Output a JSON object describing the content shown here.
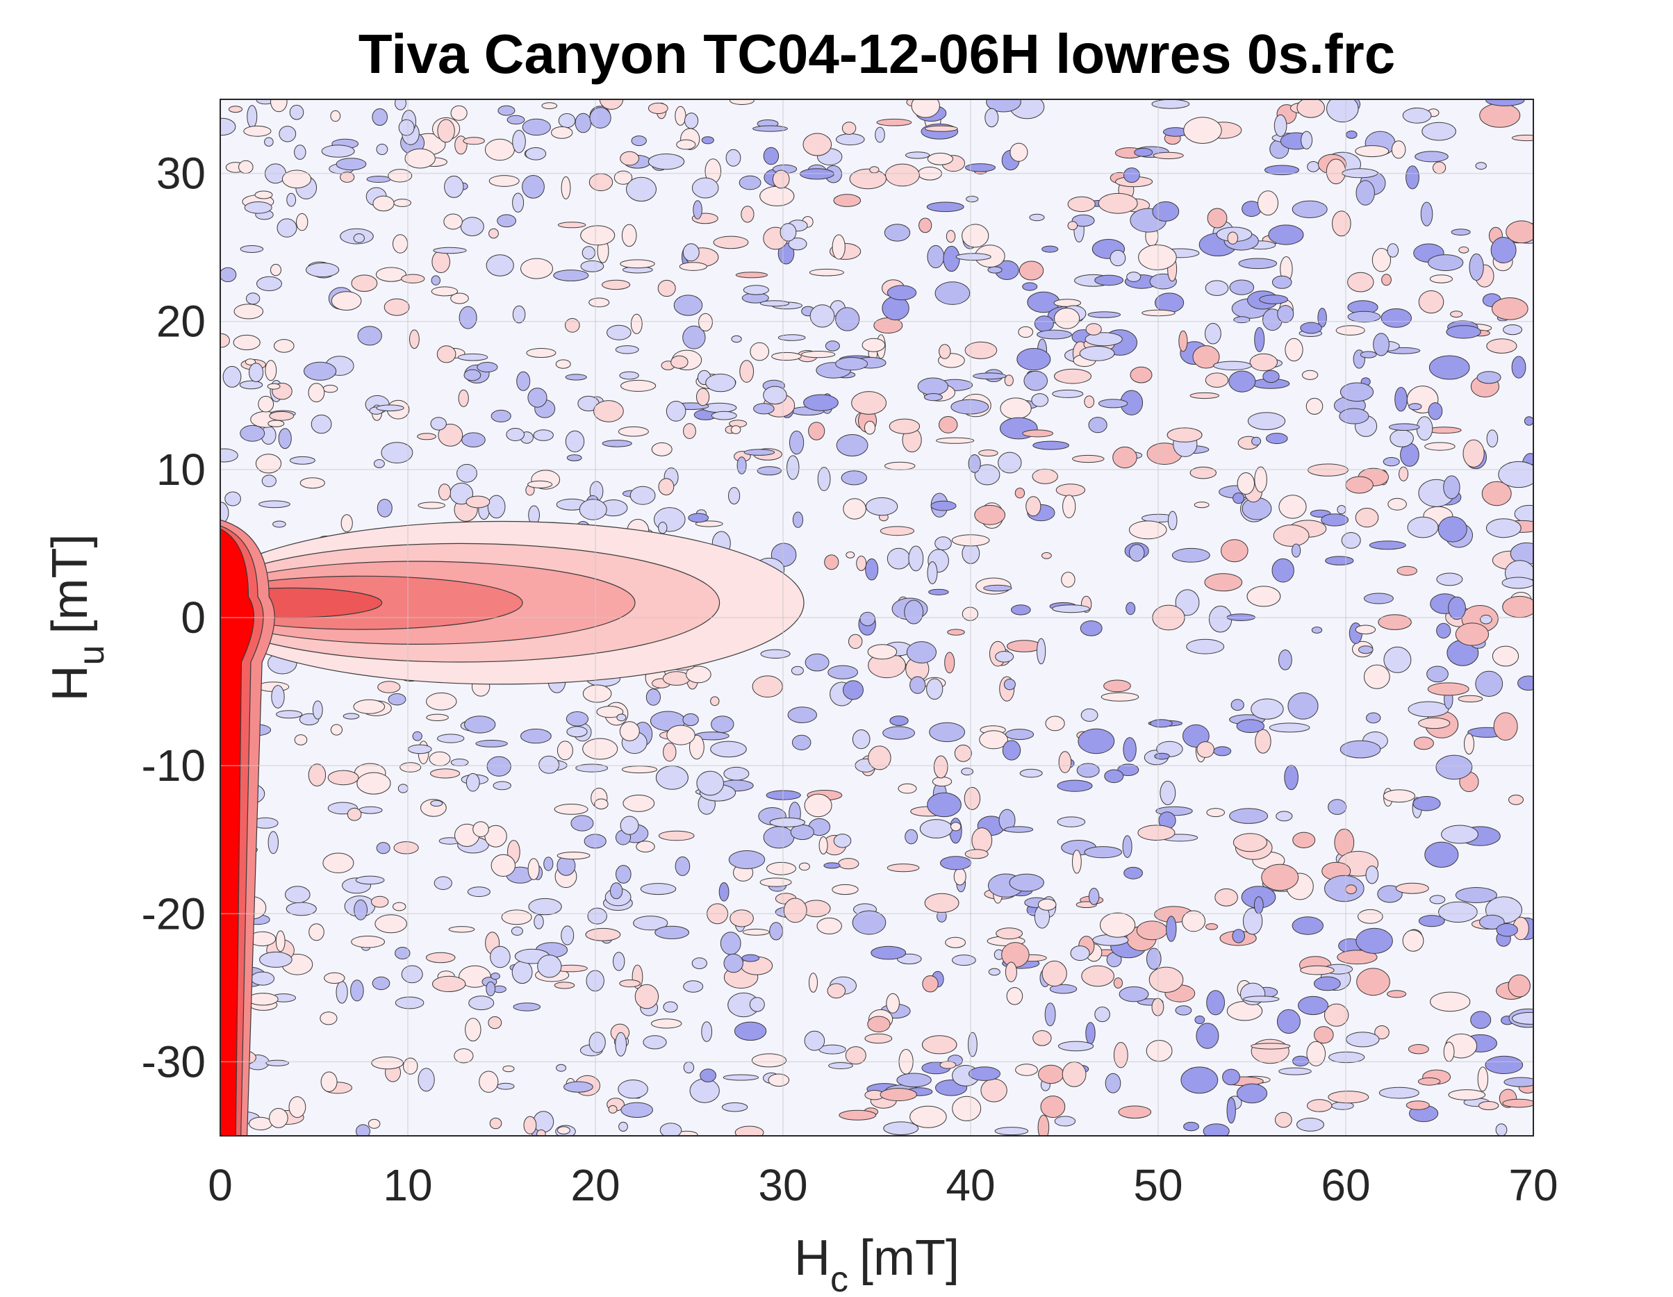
{
  "chart_data": {
    "type": "heatmap",
    "subtype": "filled-contour",
    "title": "Tiva Canyon TC04-12-06H lowres 0s.frc",
    "xlabel": {
      "main": "H",
      "sub": "c",
      "unit": "[mT]"
    },
    "ylabel": {
      "main": "H",
      "sub": "u",
      "unit": "[mT]"
    },
    "xlim": [
      0,
      70
    ],
    "ylim": [
      -35,
      35
    ],
    "xticks": [
      "0",
      "10",
      "20",
      "30",
      "40",
      "50",
      "60",
      "70"
    ],
    "yticks": [
      "-30",
      "-20",
      "-10",
      "0",
      "10",
      "20",
      "30"
    ],
    "xtick_values": [
      0,
      10,
      20,
      30,
      40,
      50,
      60,
      70
    ],
    "ytick_values": [
      -30,
      -20,
      -10,
      0,
      10,
      20,
      30
    ],
    "grid": true,
    "colormap": {
      "positive": "#ff0000",
      "zero": "#f4f4fd",
      "negative": "#5a5ad8",
      "contour_lines": "#000000"
    },
    "features": [
      {
        "name": "vertical ridge along Hc≈0",
        "hc_range": [
          0,
          1.5
        ],
        "hu_range": [
          -35,
          6
        ],
        "intensity": 1.0
      },
      {
        "name": "horizontal central ridge",
        "hc_range": [
          0,
          30
        ],
        "hu_center": 1,
        "hu_halfwidth": 3,
        "intensity": 0.6
      },
      {
        "name": "background noise",
        "hc_range": [
          0,
          70
        ],
        "hu_range": [
          -35,
          35
        ],
        "amplitude_increasing_with_hc": true
      }
    ]
  }
}
